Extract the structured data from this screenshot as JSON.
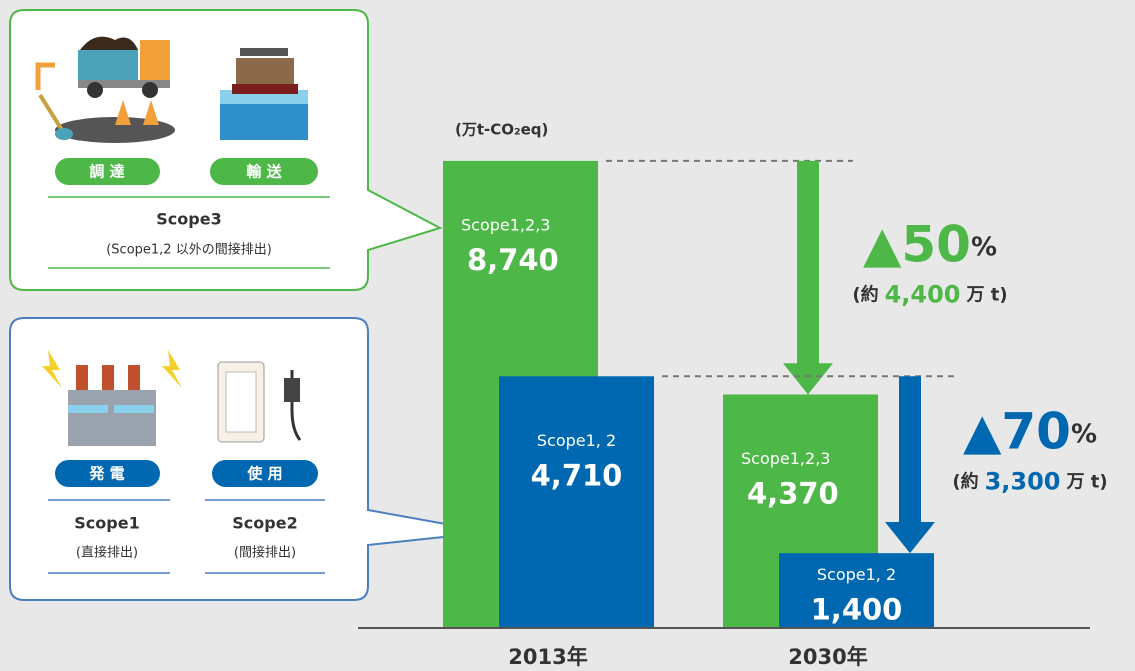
{
  "chart_data": {
    "type": "bar",
    "unit_label": "(万t-CO₂eq)",
    "categories": [
      "2013年",
      "2030年"
    ],
    "series": [
      {
        "name": "Scope1,2,3",
        "color": "#4db848",
        "values": [
          8740,
          4370
        ],
        "value_labels": [
          "8,740",
          "4,370"
        ]
      },
      {
        "name": "Scope1, 2",
        "color": "#0068b0",
        "values": [
          4710,
          1400
        ],
        "value_labels": [
          "4,710",
          "1,400"
        ]
      }
    ],
    "ylim": [
      0,
      9000
    ],
    "reductions": [
      {
        "label": "▲50",
        "unit": "%",
        "note_open": "(約",
        "amount": "4,400",
        "note_close": "万 t)"
      },
      {
        "label": "▲70",
        "unit": "%",
        "note_open": "(約",
        "amount": "3,300",
        "note_close": "万 t)"
      }
    ]
  },
  "callouts": {
    "scope3": {
      "tags": [
        "調 達",
        "輸 送"
      ],
      "title": "Scope3",
      "subtitle": "(Scope1,2 以外の間接排出)"
    },
    "scope12": [
      {
        "tag": "発 電",
        "title": "Scope1",
        "subtitle": "(直接排出)"
      },
      {
        "tag": "使 用",
        "title": "Scope2",
        "subtitle": "(間接排出)"
      }
    ]
  }
}
